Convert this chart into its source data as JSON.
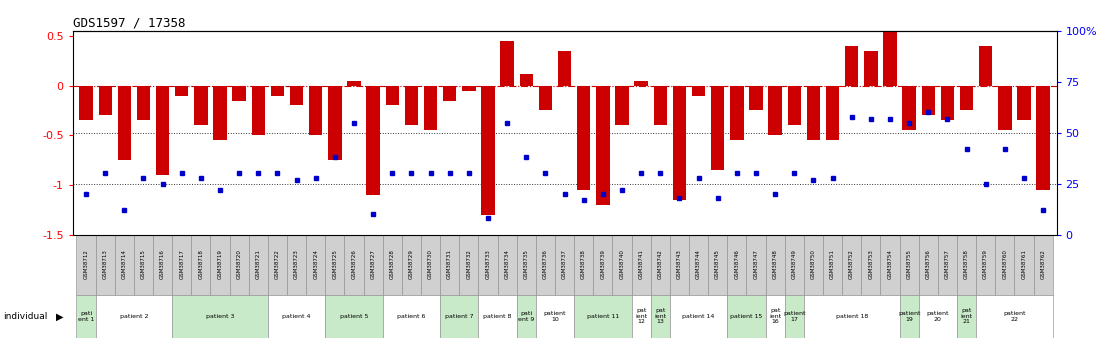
{
  "title": "GDS1597 / 17358",
  "samples": [
    "GSM38712",
    "GSM38713",
    "GSM38714",
    "GSM38715",
    "GSM38716",
    "GSM38717",
    "GSM38718",
    "GSM38719",
    "GSM38720",
    "GSM38721",
    "GSM38722",
    "GSM38723",
    "GSM38724",
    "GSM38725",
    "GSM38726",
    "GSM38727",
    "GSM38728",
    "GSM38729",
    "GSM38730",
    "GSM38731",
    "GSM38732",
    "GSM38733",
    "GSM38734",
    "GSM38735",
    "GSM38736",
    "GSM38737",
    "GSM38738",
    "GSM38739",
    "GSM38740",
    "GSM38741",
    "GSM38742",
    "GSM38743",
    "GSM38744",
    "GSM38745",
    "GSM38746",
    "GSM38747",
    "GSM38748",
    "GSM38749",
    "GSM38750",
    "GSM38751",
    "GSM38752",
    "GSM38753",
    "GSM38754",
    "GSM38755",
    "GSM38756",
    "GSM38757",
    "GSM38758",
    "GSM38759",
    "GSM38760",
    "GSM38761",
    "GSM38762"
  ],
  "log2_ratio": [
    -0.35,
    -0.3,
    -0.75,
    -0.35,
    -0.9,
    -0.1,
    -0.4,
    -0.55,
    -0.15,
    -0.5,
    -0.1,
    -0.2,
    -0.5,
    -0.75,
    0.05,
    -1.1,
    -0.2,
    -0.4,
    -0.45,
    -0.15,
    -0.05,
    -1.3,
    0.45,
    0.12,
    -0.25,
    0.35,
    -1.05,
    -1.2,
    -0.4,
    0.05,
    -0.4,
    -1.15,
    -0.1,
    -0.85,
    -0.55,
    -0.25,
    -0.5,
    -0.4,
    -0.55,
    -0.55,
    0.4,
    0.35,
    0.75,
    -0.45,
    -0.3,
    -0.35,
    -0.25,
    0.4,
    -0.45,
    -0.35,
    -1.05
  ],
  "percentile": [
    20,
    30,
    12,
    28,
    25,
    30,
    28,
    22,
    30,
    30,
    30,
    27,
    28,
    38,
    55,
    10,
    30,
    30,
    30,
    30,
    30,
    8,
    55,
    38,
    30,
    20,
    17,
    20,
    22,
    30,
    30,
    18,
    28,
    18,
    30,
    30,
    20,
    30,
    27,
    28,
    58,
    57,
    57,
    55,
    60,
    57,
    42,
    25,
    42,
    28,
    12
  ],
  "patients": [
    {
      "label": "pati\nent 1",
      "start": 0,
      "end": 0,
      "color": "#c8eac8"
    },
    {
      "label": "patient 2",
      "start": 1,
      "end": 4,
      "color": "#ffffff"
    },
    {
      "label": "patient 3",
      "start": 5,
      "end": 9,
      "color": "#c8eac8"
    },
    {
      "label": "patient 4",
      "start": 10,
      "end": 12,
      "color": "#ffffff"
    },
    {
      "label": "patient 5",
      "start": 13,
      "end": 15,
      "color": "#c8eac8"
    },
    {
      "label": "patient 6",
      "start": 16,
      "end": 18,
      "color": "#ffffff"
    },
    {
      "label": "patient 7",
      "start": 19,
      "end": 20,
      "color": "#c8eac8"
    },
    {
      "label": "patient 8",
      "start": 21,
      "end": 22,
      "color": "#ffffff"
    },
    {
      "label": "pati\nent 9",
      "start": 23,
      "end": 23,
      "color": "#c8eac8"
    },
    {
      "label": "patient\n10",
      "start": 24,
      "end": 25,
      "color": "#ffffff"
    },
    {
      "label": "patient 11",
      "start": 26,
      "end": 28,
      "color": "#c8eac8"
    },
    {
      "label": "pat\nient\n12",
      "start": 29,
      "end": 29,
      "color": "#ffffff"
    },
    {
      "label": "pat\nient\n13",
      "start": 30,
      "end": 30,
      "color": "#c8eac8"
    },
    {
      "label": "patient 14",
      "start": 31,
      "end": 33,
      "color": "#ffffff"
    },
    {
      "label": "patient 15",
      "start": 34,
      "end": 35,
      "color": "#c8eac8"
    },
    {
      "label": "pat\nient\n16",
      "start": 36,
      "end": 36,
      "color": "#ffffff"
    },
    {
      "label": "patient\n17",
      "start": 37,
      "end": 37,
      "color": "#c8eac8"
    },
    {
      "label": "patient 18",
      "start": 38,
      "end": 42,
      "color": "#ffffff"
    },
    {
      "label": "patient\n19",
      "start": 43,
      "end": 43,
      "color": "#c8eac8"
    },
    {
      "label": "patient\n20",
      "start": 44,
      "end": 45,
      "color": "#ffffff"
    },
    {
      "label": "pat\nient\n21",
      "start": 46,
      "end": 46,
      "color": "#c8eac8"
    },
    {
      "label": "patient\n22",
      "start": 47,
      "end": 50,
      "color": "#ffffff"
    }
  ],
  "bar_color": "#cc0000",
  "dot_color": "#0000cc",
  "ylim": [
    -1.5,
    0.55
  ],
  "left_yticks": [
    -1.5,
    -1.0,
    -0.5,
    0.0,
    0.5
  ],
  "right_yticks": [
    0,
    25,
    50,
    75,
    100
  ],
  "right_ylim": [
    0,
    100
  ],
  "gsm_bg": "#d0d0d0",
  "background_color": "#ffffff"
}
